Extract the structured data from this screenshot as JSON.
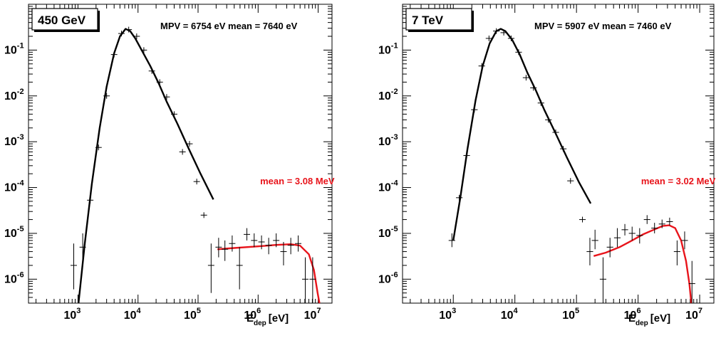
{
  "chart_data": [
    {
      "type": "scatter",
      "label_box": "450 GeV",
      "annotation_main": "MPV = 6754 eV    mean = 7640 eV",
      "annotation_tail": "mean = 3.08 MeV",
      "xlabel": "E",
      "xlabel_sub": "dep",
      "xlabel_unit": "[eV]",
      "xscale": "log",
      "yscale": "log",
      "xlim": [
        150,
        17000000
      ],
      "ylim": [
        3e-07,
        1.0
      ],
      "xtick_mantissa": "10",
      "xtick_exponents": [
        "3",
        "4",
        "5",
        "6",
        "7"
      ],
      "xtick_values": [
        1000,
        10000,
        100000,
        1000000,
        10000000
      ],
      "ytick_mantissa": "10",
      "ytick_exponents": [
        "-6",
        "-5",
        "-4",
        "-3",
        "-2",
        "-1"
      ],
      "ytick_values": [
        1e-06,
        1e-05,
        0.0001,
        0.001,
        0.01,
        0.1
      ],
      "colors": {
        "data": "#000000",
        "main_fit": "#000000",
        "tail_fit": "#e8141b"
      },
      "data_points": [
        {
          "x": 850,
          "y": 2e-06,
          "ylo": 6e-07,
          "yhi": 6e-06
        },
        {
          "x": 1200,
          "y": 5e-06,
          "ylo": 2.5e-06,
          "yhi": 1e-05
        },
        {
          "x": 1600,
          "y": 5.3e-05,
          "ylo": 4.5e-05,
          "yhi": 6.2e-05
        },
        {
          "x": 2200,
          "y": 0.00075
        },
        {
          "x": 3000,
          "y": 0.01
        },
        {
          "x": 4000,
          "y": 0.08
        },
        {
          "x": 5300,
          "y": 0.23
        },
        {
          "x": 7000,
          "y": 0.28
        },
        {
          "x": 9500,
          "y": 0.2
        },
        {
          "x": 12500,
          "y": 0.1
        },
        {
          "x": 17000,
          "y": 0.035
        },
        {
          "x": 23000,
          "y": 0.02
        },
        {
          "x": 30000,
          "y": 0.0095
        },
        {
          "x": 40000,
          "y": 0.004
        },
        {
          "x": 55000,
          "y": 0.0006
        },
        {
          "x": 72000,
          "y": 0.0009
        },
        {
          "x": 95000,
          "y": 0.000135
        },
        {
          "x": 125000,
          "y": 2.5e-05
        },
        {
          "x": 165000,
          "y": 2e-06,
          "ylo": 5e-07,
          "yhi": 6e-06
        },
        {
          "x": 220000,
          "y": 5e-06,
          "ylo": 3e-06,
          "yhi": 8e-06
        },
        {
          "x": 280000,
          "y": 4.5e-06,
          "ylo": 2.5e-06,
          "yhi": 7e-06
        },
        {
          "x": 370000,
          "y": 6e-06,
          "ylo": 4e-06,
          "yhi": 9e-06
        },
        {
          "x": 490000,
          "y": 2e-06,
          "ylo": 6e-07,
          "yhi": 5e-06
        },
        {
          "x": 650000,
          "y": 9.5e-06,
          "ylo": 7e-06,
          "yhi": 1.3e-05
        },
        {
          "x": 860000,
          "y": 7e-06,
          "ylo": 5e-06,
          "yhi": 1e-05
        },
        {
          "x": 1140000,
          "y": 6.5e-06,
          "ylo": 4.5e-06,
          "yhi": 9e-06
        },
        {
          "x": 1500000,
          "y": 5.5e-06,
          "ylo": 3.5e-06,
          "yhi": 8e-06
        },
        {
          "x": 2000000,
          "y": 7e-06,
          "ylo": 5e-06,
          "yhi": 1e-05
        },
        {
          "x": 2650000,
          "y": 4e-06,
          "ylo": 2e-06,
          "yhi": 6.5e-06
        },
        {
          "x": 3500000,
          "y": 5.5e-06,
          "ylo": 3.5e-06,
          "yhi": 8e-06
        },
        {
          "x": 4650000,
          "y": 6e-06,
          "ylo": 4e-06,
          "yhi": 9e-06
        },
        {
          "x": 6100000,
          "y": 1e-06,
          "ylo": 3e-07,
          "yhi": 3e-06
        },
        {
          "x": 8100000,
          "y": 1e-06,
          "ylo": 3e-07,
          "yhi": 3e-06
        }
      ],
      "main_fit": [
        [
          1020,
          3e-07
        ],
        [
          1300,
          6e-06
        ],
        [
          1700,
          0.00012
        ],
        [
          2300,
          0.002
        ],
        [
          3000,
          0.016
        ],
        [
          4000,
          0.085
        ],
        [
          5000,
          0.2
        ],
        [
          6200,
          0.29
        ],
        [
          7400,
          0.26
        ],
        [
          9000,
          0.18
        ],
        [
          12000,
          0.09
        ],
        [
          16000,
          0.045
        ],
        [
          22000,
          0.019
        ],
        [
          30000,
          0.0075
        ],
        [
          45000,
          0.0025
        ],
        [
          70000,
          0.0007
        ],
        [
          110000,
          0.0002
        ],
        [
          180000,
          5.5e-05
        ]
      ],
      "tail_fit": [
        [
          210000,
          4.5e-06
        ],
        [
          400000,
          4.8e-06
        ],
        [
          1000000,
          5.2e-06
        ],
        [
          2000000,
          5.6e-06
        ],
        [
          3500000,
          5.8e-06
        ],
        [
          5000000,
          5.4e-06
        ],
        [
          7000000,
          3.5e-06
        ],
        [
          8500000,
          1.6e-06
        ],
        [
          9800000,
          5e-07
        ],
        [
          10500000,
          2.8e-07
        ]
      ]
    },
    {
      "type": "scatter",
      "label_box": "7 TeV",
      "annotation_main": "MPV = 5907 eV    mean = 7460 eV",
      "annotation_tail": "mean = 3.02 MeV",
      "xlabel": "E",
      "xlabel_sub": "dep",
      "xlabel_unit": "[eV]",
      "xscale": "log",
      "yscale": "log",
      "xlim": [
        150,
        17000000
      ],
      "ylim": [
        3e-07,
        1.0
      ],
      "xtick_mantissa": "10",
      "xtick_exponents": [
        "3",
        "4",
        "5",
        "6",
        "7"
      ],
      "xtick_values": [
        1000,
        10000,
        100000,
        1000000,
        10000000
      ],
      "ytick_mantissa": "10",
      "ytick_exponents": [
        "-6",
        "-5",
        "-4",
        "-3",
        "-2",
        "-1"
      ],
      "ytick_values": [
        1e-06,
        1e-05,
        0.0001,
        0.001,
        0.01,
        0.1
      ],
      "colors": {
        "data": "#000000",
        "main_fit": "#000000",
        "tail_fit": "#e8141b"
      },
      "data_points": [
        {
          "x": 950,
          "y": 7e-06,
          "ylo": 5e-06,
          "yhi": 1e-05
        },
        {
          "x": 1250,
          "y": 6e-05
        },
        {
          "x": 1650,
          "y": 0.0005
        },
        {
          "x": 2200,
          "y": 0.005
        },
        {
          "x": 2900,
          "y": 0.045
        },
        {
          "x": 3800,
          "y": 0.18
        },
        {
          "x": 5000,
          "y": 0.26
        },
        {
          "x": 6600,
          "y": 0.24
        },
        {
          "x": 8700,
          "y": 0.18
        },
        {
          "x": 11500,
          "y": 0.09
        },
        {
          "x": 15200,
          "y": 0.025
        },
        {
          "x": 20000,
          "y": 0.015
        },
        {
          "x": 26500,
          "y": 0.007
        },
        {
          "x": 35000,
          "y": 0.003
        },
        {
          "x": 46000,
          "y": 0.0016
        },
        {
          "x": 61000,
          "y": 0.0007
        },
        {
          "x": 80000,
          "y": 0.00014
        },
        {
          "x": 125000,
          "y": 2e-05
        },
        {
          "x": 165000,
          "y": 4e-06,
          "ylo": 2e-06,
          "yhi": 8e-06
        },
        {
          "x": 200000,
          "y": 7e-06,
          "ylo": 4.5e-06,
          "yhi": 1.2e-05
        },
        {
          "x": 270000,
          "y": 1e-06,
          "ylo": 3e-07,
          "yhi": 3e-06
        },
        {
          "x": 350000,
          "y": 5e-06,
          "ylo": 3e-06,
          "yhi": 8e-06
        },
        {
          "x": 460000,
          "y": 8e-06,
          "ylo": 5e-06,
          "yhi": 1.3e-05
        },
        {
          "x": 610000,
          "y": 1.2e-05,
          "ylo": 9e-06,
          "yhi": 1.6e-05
        },
        {
          "x": 800000,
          "y": 1e-05,
          "ylo": 7e-06,
          "yhi": 1.4e-05
        },
        {
          "x": 1060000,
          "y": 9e-06,
          "ylo": 6e-06,
          "yhi": 1.3e-05
        },
        {
          "x": 1400000,
          "y": 2e-05,
          "ylo": 1.6e-05,
          "yhi": 2.5e-05
        },
        {
          "x": 1850000,
          "y": 1.3e-05,
          "ylo": 1e-05,
          "yhi": 1.7e-05
        },
        {
          "x": 2450000,
          "y": 1.6e-05,
          "ylo": 1.3e-05,
          "yhi": 2e-05
        },
        {
          "x": 3250000,
          "y": 1.8e-05,
          "ylo": 1.5e-05,
          "yhi": 2.2e-05
        },
        {
          "x": 4300000,
          "y": 4e-06,
          "ylo": 2e-06,
          "yhi": 7e-06
        },
        {
          "x": 5700000,
          "y": 7e-06,
          "ylo": 4.5e-06,
          "yhi": 1.1e-05
        },
        {
          "x": 7500000,
          "y": 8e-07,
          "ylo": 3e-07,
          "yhi": 2.5e-06
        }
      ],
      "main_fit": [
        [
          1000,
          7e-06
        ],
        [
          1300,
          6e-05
        ],
        [
          1700,
          0.0007
        ],
        [
          2300,
          0.008
        ],
        [
          3000,
          0.045
        ],
        [
          3900,
          0.14
        ],
        [
          5000,
          0.26
        ],
        [
          5900,
          0.29
        ],
        [
          7000,
          0.26
        ],
        [
          9000,
          0.17
        ],
        [
          12000,
          0.08
        ],
        [
          16000,
          0.032
        ],
        [
          22000,
          0.013
        ],
        [
          30000,
          0.005
        ],
        [
          45000,
          0.0016
        ],
        [
          70000,
          0.00045
        ],
        [
          110000,
          0.00013
        ],
        [
          170000,
          4.5e-05
        ]
      ],
      "tail_fit": [
        [
          190000,
          3.2e-06
        ],
        [
          300000,
          3.8e-06
        ],
        [
          500000,
          5e-06
        ],
        [
          800000,
          7e-06
        ],
        [
          1200000,
          9.5e-06
        ],
        [
          1800000,
          1.2e-05
        ],
        [
          2500000,
          1.45e-05
        ],
        [
          3200000,
          1.5e-05
        ],
        [
          4000000,
          1.3e-05
        ],
        [
          5000000,
          7e-06
        ],
        [
          6000000,
          2.5e-06
        ],
        [
          6800000,
          8e-07
        ],
        [
          7300000,
          3e-07
        ]
      ]
    }
  ]
}
